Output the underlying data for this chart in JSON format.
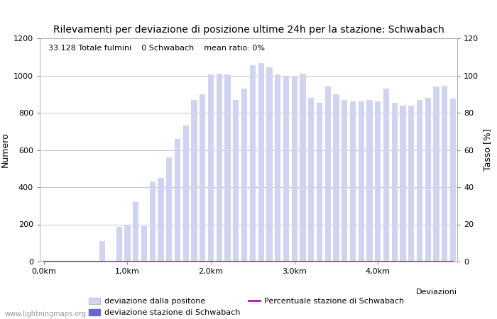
{
  "title": "Rilevamenti per deviazione di posizione ultime 24h per la stazione: Schwabach",
  "annotation": "33.128 Totale fulmini    0 Schwabach    mean ratio: 0%",
  "xlabel": "Deviazioni",
  "ylabel_left": "Numero",
  "ylabel_right": "Tasso [%]",
  "watermark": "www.lightningmaps.org",
  "ylim_left": [
    0,
    1200
  ],
  "ylim_right": [
    0,
    120
  ],
  "xtick_positions": [
    0,
    10,
    20,
    30,
    40
  ],
  "xtick_labels": [
    "0,0km",
    "1,0km",
    "2,0km",
    "3,0km",
    "4,0km"
  ],
  "ytick_left": [
    0,
    200,
    400,
    600,
    800,
    1000,
    1200
  ],
  "ytick_right": [
    0,
    20,
    40,
    60,
    80,
    100,
    120
  ],
  "bar_color_light": "#d0d4f0",
  "bar_color_dark": "#6868cc",
  "line_color": "#cc00cc",
  "grid_color": "#aaaacc",
  "background_color": "#ffffff",
  "bar_values": [
    0,
    2,
    0,
    1,
    0,
    0,
    0,
    110,
    0,
    185,
    200,
    320,
    190,
    430,
    450,
    560,
    660,
    730,
    870,
    900,
    1005,
    1010,
    1005,
    870,
    930,
    1055,
    1065,
    1045,
    1005,
    1000,
    1000,
    1010,
    880,
    855,
    940,
    900,
    870,
    860,
    860,
    870,
    860,
    930,
    855,
    840,
    840,
    870,
    880,
    940,
    945,
    875
  ],
  "schwabach_values": [
    0,
    0,
    0,
    0,
    0,
    0,
    0,
    0,
    0,
    0,
    0,
    0,
    0,
    0,
    0,
    0,
    0,
    0,
    0,
    0,
    0,
    0,
    0,
    0,
    0,
    0,
    0,
    0,
    0,
    0,
    0,
    0,
    0,
    0,
    0,
    0,
    0,
    0,
    0,
    0,
    0,
    0,
    0,
    0,
    0,
    0,
    0,
    0,
    0,
    0
  ],
  "ratio_values": [
    0,
    0,
    0,
    0,
    0,
    0,
    0,
    0,
    0,
    0,
    0,
    0,
    0,
    0,
    0,
    0,
    0,
    0,
    0,
    0,
    0,
    0,
    0,
    0,
    0,
    0,
    0,
    0,
    0,
    0,
    0,
    0,
    0,
    0,
    0,
    0,
    0,
    0,
    0,
    0,
    0,
    0,
    0,
    0,
    0,
    0,
    0,
    0,
    0,
    0
  ],
  "legend_labels": [
    "deviazione dalla positone",
    "deviazione stazione di Schwabach",
    "Percentuale stazione di Schwabach"
  ],
  "title_fontsize": 10,
  "axis_fontsize": 8,
  "annotation_fontsize": 8
}
